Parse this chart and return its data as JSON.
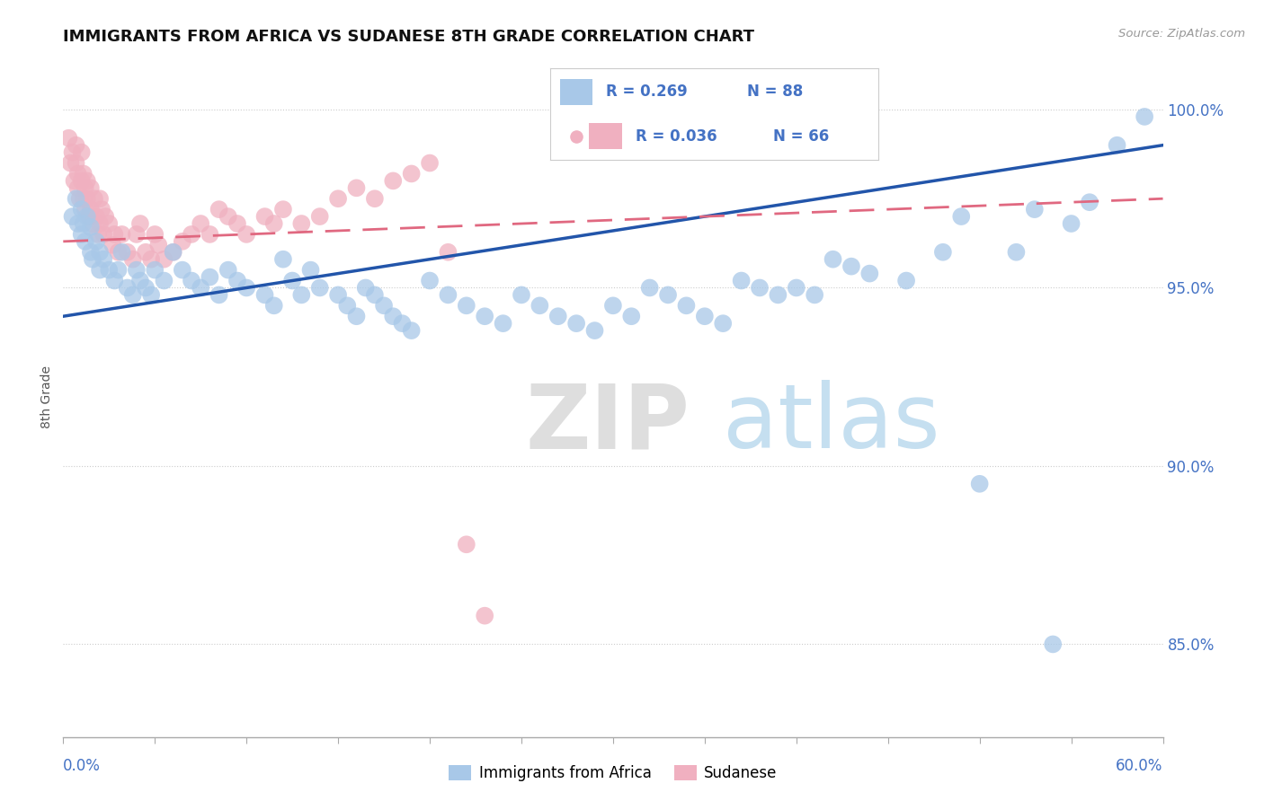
{
  "title": "IMMIGRANTS FROM AFRICA VS SUDANESE 8TH GRADE CORRELATION CHART",
  "source": "Source: ZipAtlas.com",
  "ylabel": "8th Grade",
  "yticks": [
    "85.0%",
    "90.0%",
    "95.0%",
    "100.0%"
  ],
  "ytick_vals": [
    0.85,
    0.9,
    0.95,
    1.0
  ],
  "xlim": [
    0.0,
    0.6
  ],
  "ylim": [
    0.824,
    1.015
  ],
  "legend_R1": "R = 0.269",
  "legend_N1": "N = 88",
  "legend_R2": "R = 0.036",
  "legend_N2": "N = 66",
  "blue_color": "#a8c8e8",
  "pink_color": "#f0b0c0",
  "blue_line_color": "#2255aa",
  "pink_line_color": "#e06880",
  "blue_scatter_x": [
    0.005,
    0.007,
    0.008,
    0.01,
    0.01,
    0.011,
    0.012,
    0.013,
    0.015,
    0.015,
    0.016,
    0.018,
    0.02,
    0.02,
    0.022,
    0.025,
    0.028,
    0.03,
    0.032,
    0.035,
    0.038,
    0.04,
    0.042,
    0.045,
    0.048,
    0.05,
    0.055,
    0.06,
    0.065,
    0.07,
    0.075,
    0.08,
    0.085,
    0.09,
    0.095,
    0.1,
    0.11,
    0.115,
    0.12,
    0.125,
    0.13,
    0.135,
    0.14,
    0.15,
    0.155,
    0.16,
    0.165,
    0.17,
    0.175,
    0.18,
    0.185,
    0.19,
    0.2,
    0.21,
    0.22,
    0.23,
    0.24,
    0.25,
    0.26,
    0.27,
    0.28,
    0.29,
    0.3,
    0.31,
    0.32,
    0.33,
    0.34,
    0.35,
    0.36,
    0.37,
    0.38,
    0.39,
    0.4,
    0.41,
    0.42,
    0.43,
    0.44,
    0.46,
    0.48,
    0.49,
    0.5,
    0.52,
    0.53,
    0.54,
    0.55,
    0.56,
    0.575,
    0.59
  ],
  "blue_scatter_y": [
    0.97,
    0.975,
    0.968,
    0.965,
    0.972,
    0.968,
    0.963,
    0.97,
    0.967,
    0.96,
    0.958,
    0.963,
    0.955,
    0.96,
    0.958,
    0.955,
    0.952,
    0.955,
    0.96,
    0.95,
    0.948,
    0.955,
    0.952,
    0.95,
    0.948,
    0.955,
    0.952,
    0.96,
    0.955,
    0.952,
    0.95,
    0.953,
    0.948,
    0.955,
    0.952,
    0.95,
    0.948,
    0.945,
    0.958,
    0.952,
    0.948,
    0.955,
    0.95,
    0.948,
    0.945,
    0.942,
    0.95,
    0.948,
    0.945,
    0.942,
    0.94,
    0.938,
    0.952,
    0.948,
    0.945,
    0.942,
    0.94,
    0.948,
    0.945,
    0.942,
    0.94,
    0.938,
    0.945,
    0.942,
    0.95,
    0.948,
    0.945,
    0.942,
    0.94,
    0.952,
    0.95,
    0.948,
    0.95,
    0.948,
    0.958,
    0.956,
    0.954,
    0.952,
    0.96,
    0.97,
    0.895,
    0.96,
    0.972,
    0.85,
    0.968,
    0.974,
    0.99,
    0.998
  ],
  "pink_scatter_x": [
    0.003,
    0.004,
    0.005,
    0.006,
    0.007,
    0.007,
    0.008,
    0.008,
    0.009,
    0.01,
    0.01,
    0.011,
    0.011,
    0.012,
    0.012,
    0.013,
    0.013,
    0.014,
    0.015,
    0.015,
    0.016,
    0.017,
    0.018,
    0.019,
    0.02,
    0.02,
    0.021,
    0.022,
    0.023,
    0.025,
    0.027,
    0.028,
    0.03,
    0.032,
    0.035,
    0.038,
    0.04,
    0.042,
    0.045,
    0.048,
    0.05,
    0.052,
    0.055,
    0.06,
    0.065,
    0.07,
    0.075,
    0.08,
    0.085,
    0.09,
    0.095,
    0.1,
    0.11,
    0.115,
    0.12,
    0.13,
    0.14,
    0.15,
    0.16,
    0.17,
    0.18,
    0.19,
    0.2,
    0.21,
    0.22,
    0.23
  ],
  "pink_scatter_y": [
    0.992,
    0.985,
    0.988,
    0.98,
    0.99,
    0.985,
    0.978,
    0.982,
    0.975,
    0.988,
    0.98,
    0.975,
    0.982,
    0.978,
    0.972,
    0.98,
    0.975,
    0.97,
    0.978,
    0.972,
    0.968,
    0.975,
    0.97,
    0.965,
    0.975,
    0.968,
    0.972,
    0.965,
    0.97,
    0.968,
    0.962,
    0.965,
    0.96,
    0.965,
    0.96,
    0.958,
    0.965,
    0.968,
    0.96,
    0.958,
    0.965,
    0.962,
    0.958,
    0.96,
    0.963,
    0.965,
    0.968,
    0.965,
    0.972,
    0.97,
    0.968,
    0.965,
    0.97,
    0.968,
    0.972,
    0.968,
    0.97,
    0.975,
    0.978,
    0.975,
    0.98,
    0.982,
    0.985,
    0.96,
    0.878,
    0.858
  ],
  "blue_line_x": [
    0.0,
    0.6
  ],
  "blue_line_y": [
    0.942,
    0.99
  ],
  "pink_line_x": [
    0.0,
    0.6
  ],
  "pink_line_y": [
    0.963,
    0.975
  ]
}
